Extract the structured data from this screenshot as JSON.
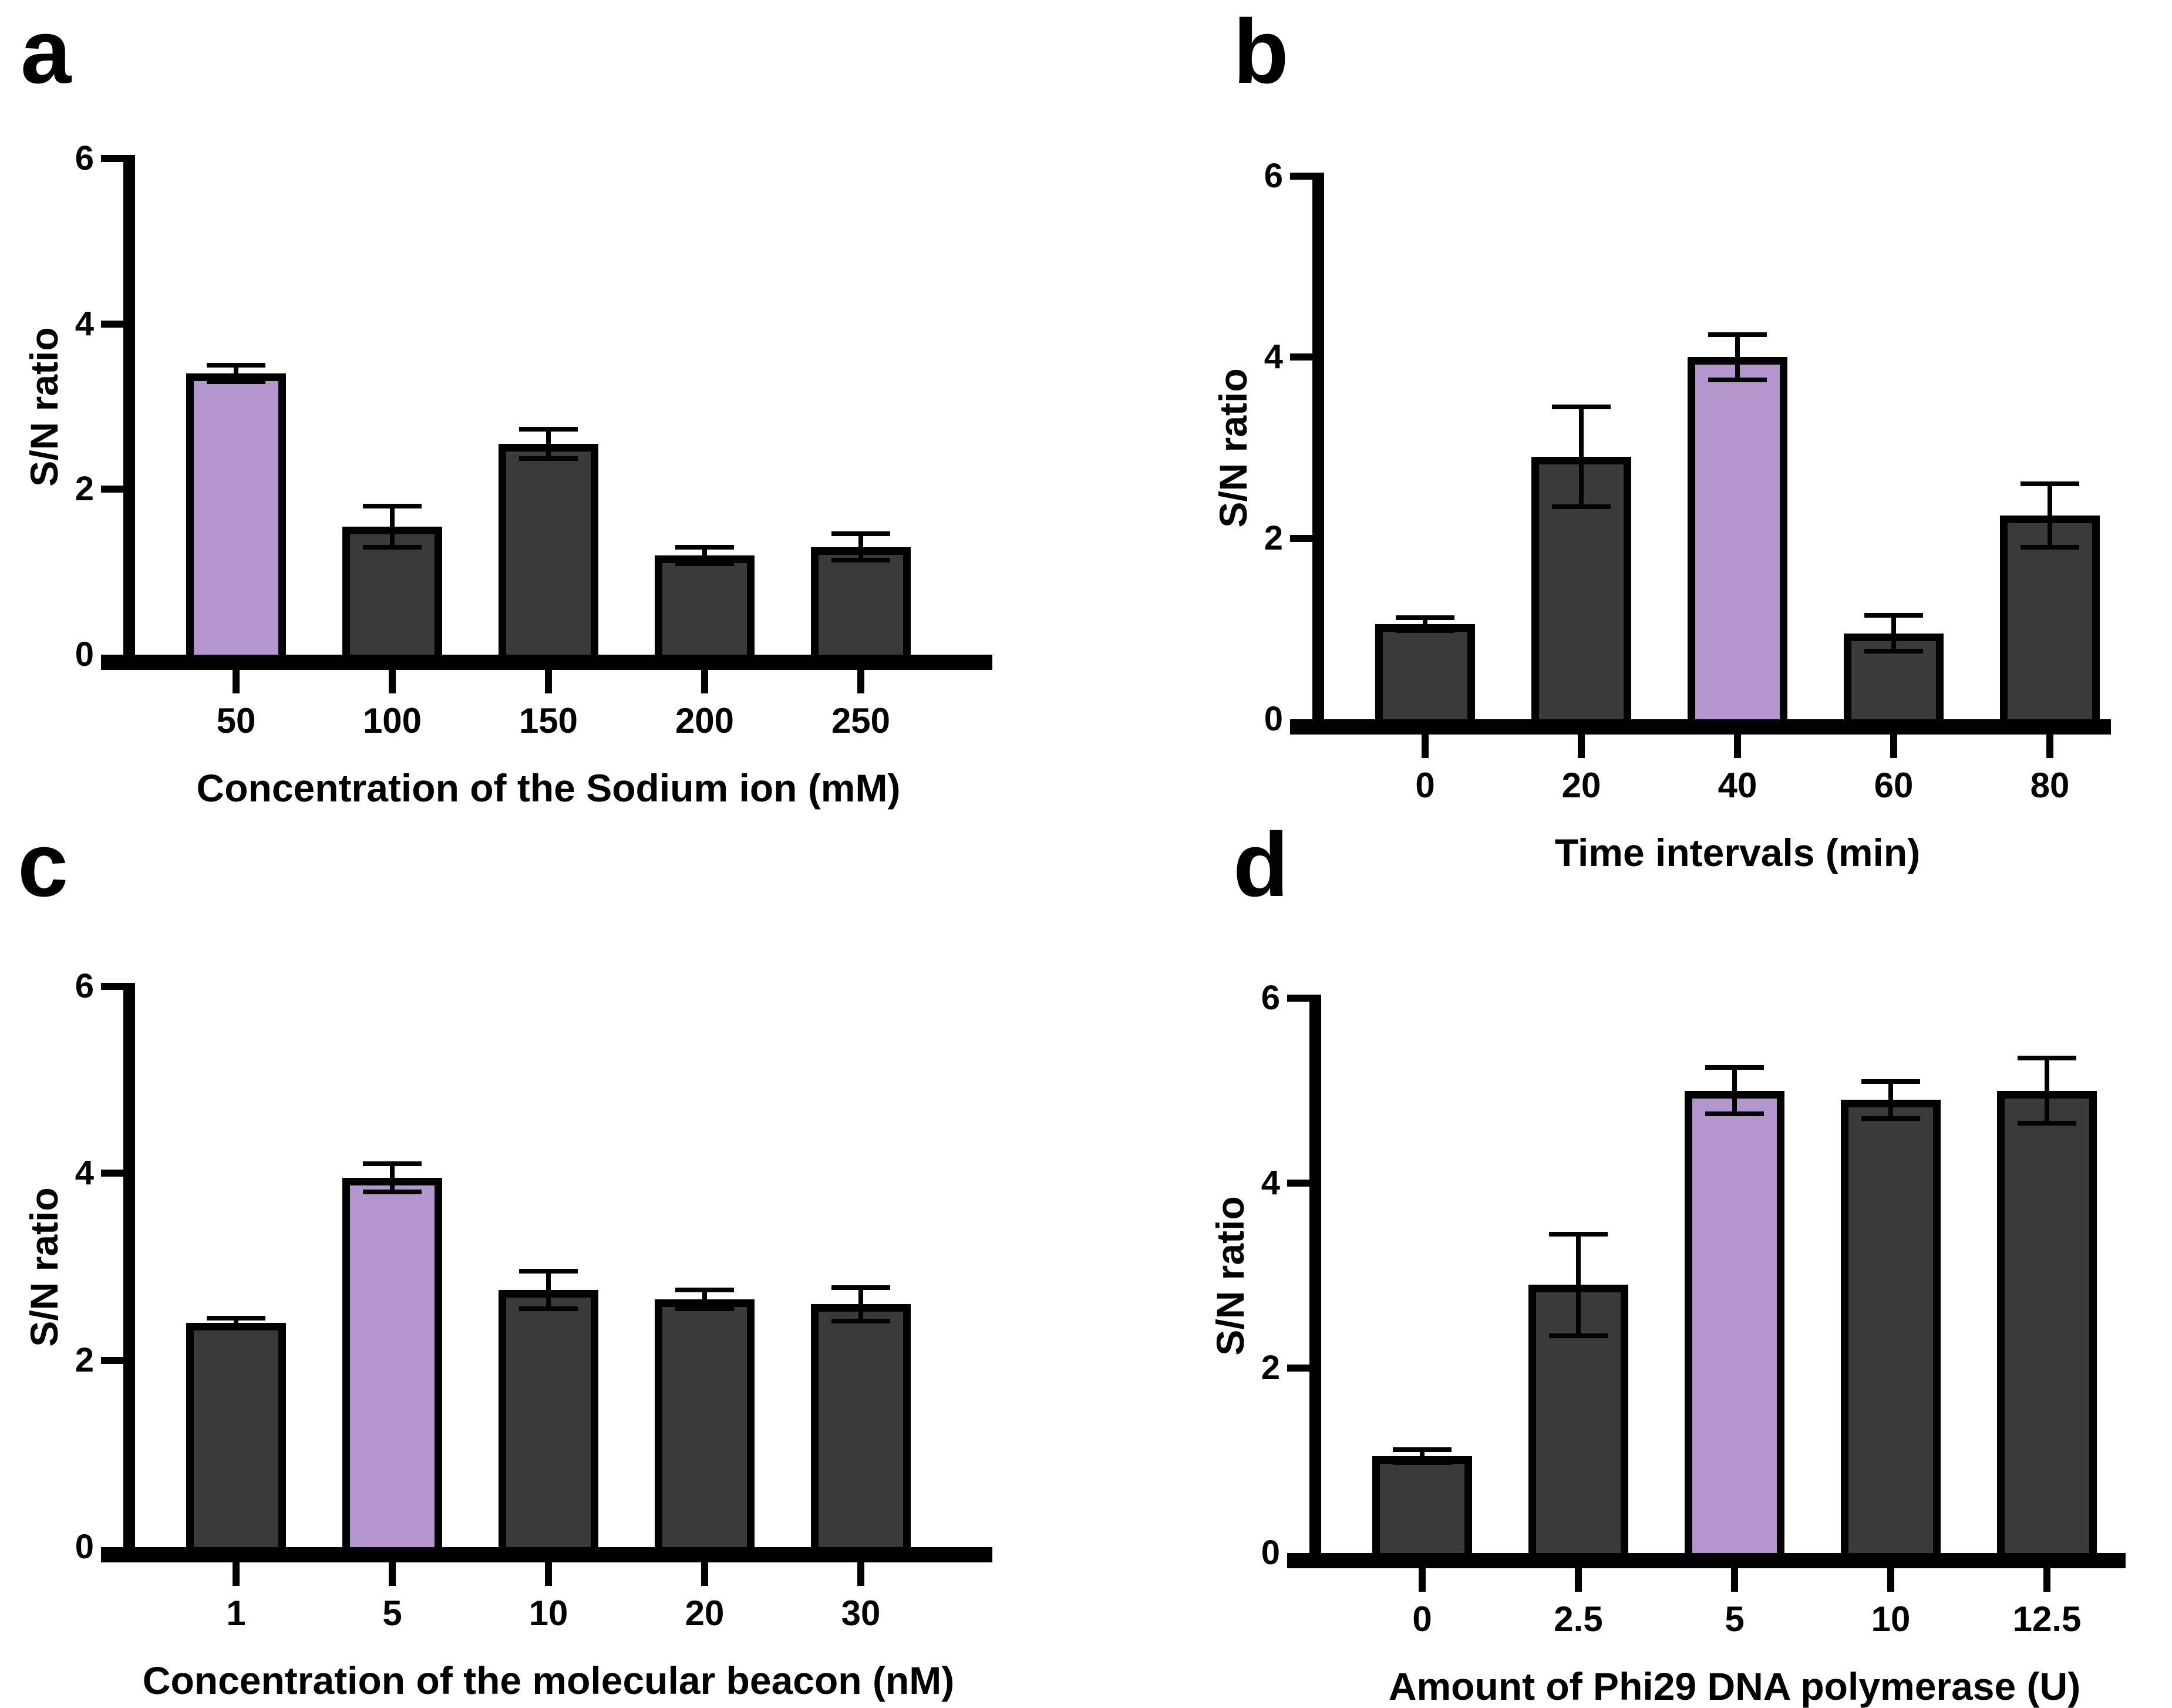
{
  "figure": {
    "background": "#ffffff",
    "description": "Four-panel bar chart figure of S/N ratio optimization experiments"
  },
  "colors": {
    "bar_dark": "#3a3a3a",
    "bar_highlight": "#b496cf",
    "axis": "#000000",
    "text": "#000000"
  },
  "chart_data": [
    {
      "panel": "a",
      "type": "bar",
      "ylabel": "S/N ratio",
      "xlabel": "Concentration of the Sodium ion (mM)",
      "categories": [
        "50",
        "100",
        "150",
        "200",
        "250"
      ],
      "values": [
        3.4,
        1.55,
        2.55,
        1.2,
        1.3
      ],
      "errors": [
        0.1,
        0.25,
        0.18,
        0.1,
        0.16
      ],
      "highlight_index": 0,
      "ylim": [
        0,
        6
      ],
      "yticks": [
        "0",
        "2",
        "4",
        "6"
      ],
      "grid": false,
      "legend": "none"
    },
    {
      "panel": "b",
      "type": "bar",
      "ylabel": "S/N ratio",
      "xlabel": "Time intervals (min)",
      "categories": [
        "0",
        "20",
        "40",
        "60",
        "80"
      ],
      "values": [
        1.05,
        2.9,
        4.0,
        0.95,
        2.25
      ],
      "errors": [
        0.07,
        0.55,
        0.25,
        0.2,
        0.35
      ],
      "highlight_index": 2,
      "ylim": [
        0,
        6
      ],
      "yticks": [
        "0",
        "2",
        "4",
        "6"
      ],
      "grid": false,
      "legend": "none"
    },
    {
      "panel": "c",
      "type": "bar",
      "ylabel": "S/N ratio",
      "xlabel": "Concentration of the molecular beacon (nM)",
      "categories": [
        "1",
        "5",
        "10",
        "20",
        "30"
      ],
      "values": [
        2.4,
        3.95,
        2.75,
        2.65,
        2.6
      ],
      "errors": [
        0.05,
        0.15,
        0.2,
        0.1,
        0.18
      ],
      "highlight_index": 1,
      "ylim": [
        0,
        6
      ],
      "yticks": [
        "0",
        "2",
        "4",
        "6"
      ],
      "grid": false,
      "legend": "none"
    },
    {
      "panel": "d",
      "type": "bar",
      "ylabel": "S/N ratio",
      "xlabel": "Amount of Phi29 DNA polymerase (U)",
      "categories": [
        "0",
        "2.5",
        "5",
        "10",
        "12.5"
      ],
      "values": [
        1.05,
        2.9,
        5.0,
        4.9,
        5.0
      ],
      "errors": [
        0.07,
        0.55,
        0.25,
        0.2,
        0.35
      ],
      "highlight_index": 2,
      "ylim": [
        0,
        6
      ],
      "yticks": [
        "0",
        "2",
        "4",
        "6"
      ],
      "grid": false,
      "legend": "none"
    }
  ]
}
